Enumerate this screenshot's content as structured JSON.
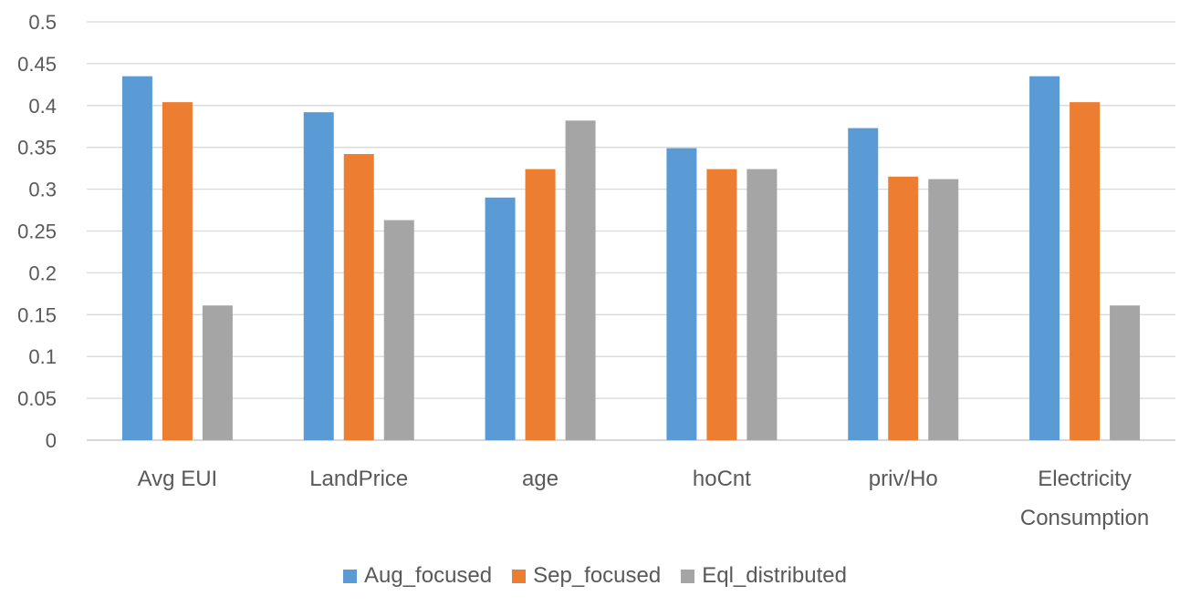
{
  "chart_data": {
    "type": "bar",
    "categories": [
      "Avg EUI",
      "LandPrice",
      "age",
      "hoCnt",
      "priv/Ho",
      "Electricity Consumption"
    ],
    "category_lines": [
      [
        "Avg EUI"
      ],
      [
        "LandPrice"
      ],
      [
        "age"
      ],
      [
        "hoCnt"
      ],
      [
        "priv/Ho"
      ],
      [
        "Electricity",
        "Consumption"
      ]
    ],
    "series": [
      {
        "name": "Aug_focused",
        "color": "#5B9BD5",
        "values": [
          0.435,
          0.392,
          0.29,
          0.349,
          0.373,
          0.435
        ]
      },
      {
        "name": "Sep_focused",
        "color": "#ED7D31",
        "values": [
          0.404,
          0.342,
          0.324,
          0.324,
          0.315,
          0.404
        ]
      },
      {
        "name": "Eql_distributed",
        "color": "#A5A5A5",
        "values": [
          0.161,
          0.263,
          0.382,
          0.324,
          0.312,
          0.161
        ]
      }
    ],
    "yticks": [
      "0",
      "0.05",
      "0.1",
      "0.15",
      "0.2",
      "0.25",
      "0.3",
      "0.35",
      "0.4",
      "0.45",
      "0.5"
    ],
    "ylim": [
      0,
      0.5
    ],
    "grid": true,
    "legend_position": "bottom",
    "title": "",
    "xlabel": "",
    "ylabel": ""
  }
}
